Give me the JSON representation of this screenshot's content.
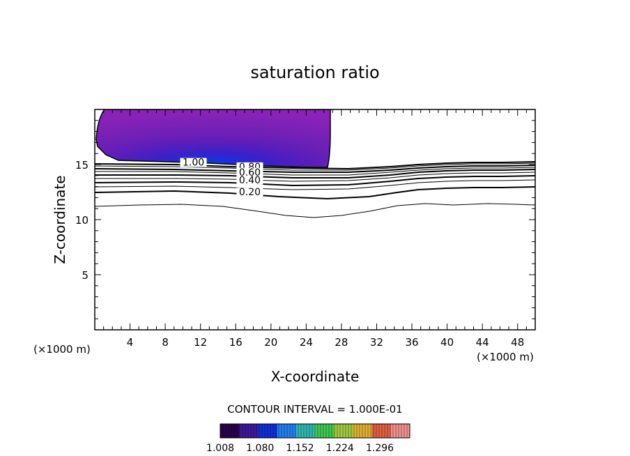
{
  "chart_data": {
    "type": "contour",
    "title": "saturation ratio",
    "xlabel": "X-coordinate",
    "ylabel": "Z-coordinate",
    "x_unit_left": "(×1000 m)",
    "x_unit_right": "(×1000 m)",
    "xlim": [
      0,
      50
    ],
    "ylim": [
      0,
      20
    ],
    "x_ticks": [
      4,
      8,
      12,
      16,
      20,
      24,
      28,
      32,
      36,
      40,
      44,
      48
    ],
    "y_ticks": [
      5,
      10,
      15
    ],
    "contour_interval_text": "CONTOUR INTERVAL = 1.000E-01",
    "contour_labels": [
      {
        "text": "1.00",
        "x": 11.2,
        "z": 14.9
      },
      {
        "text": "0.80",
        "x": 17.6,
        "z": 14.5
      },
      {
        "text": "0.60",
        "x": 17.6,
        "z": 14.0
      },
      {
        "text": "0.40",
        "x": 17.6,
        "z": 13.3
      },
      {
        "text": "0.20",
        "x": 17.6,
        "z": 12.2
      }
    ],
    "colorbar": {
      "min": 1.008,
      "max": 1.35,
      "tick_labels": [
        "1.008",
        "1.080",
        "1.152",
        "1.224",
        "1.296"
      ],
      "colors": [
        "#2a004a",
        "#3d1a9a",
        "#1030d8",
        "#2080f0",
        "#30b8b0",
        "#40c850",
        "#a0c840",
        "#e0b030",
        "#e06040",
        "#f09090"
      ]
    },
    "shaded_region_color": "#7f1fb6",
    "shaded_core_color": "#1030e0"
  }
}
